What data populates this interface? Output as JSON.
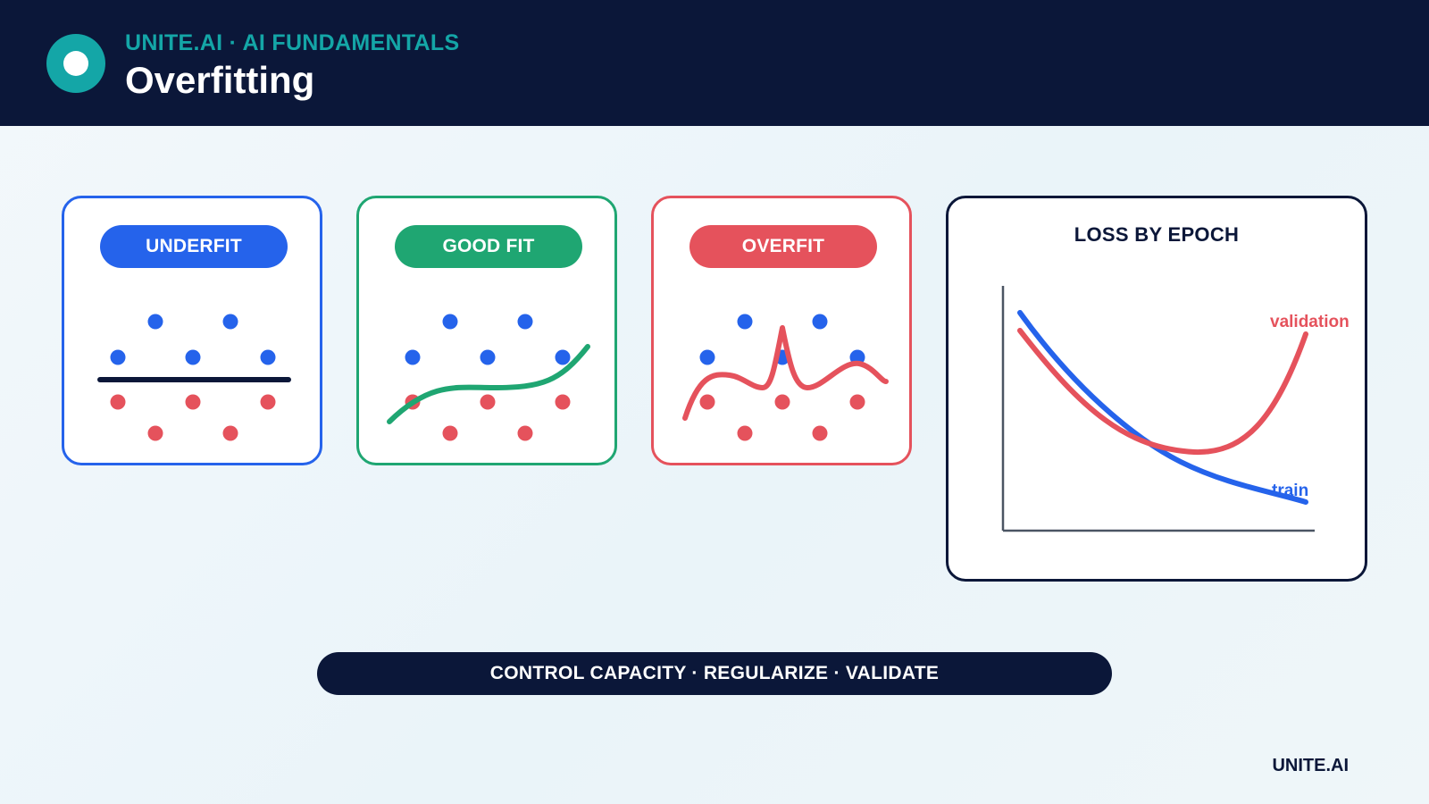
{
  "header": {
    "eyebrow": "UNITE.AI · AI FUNDAMENTALS",
    "title": "Overfitting"
  },
  "colors": {
    "navy": "#0b1739",
    "teal": "#14a6a7",
    "blue": "#2563eb",
    "green": "#1fa672",
    "red": "#e5525c",
    "axis": "#4b5563"
  },
  "panels": [
    {
      "label": "UNDERFIT",
      "accent": "#2563eb",
      "fit_line": "straight horizontal line"
    },
    {
      "label": "GOOD FIT",
      "accent": "#1fa672",
      "fit_line": "smooth curve"
    },
    {
      "label": "OVERFIT",
      "accent": "#e5525c",
      "fit_line": "wiggly curve through every point"
    }
  ],
  "loss_chart": {
    "title": "LOSS BY EPOCH",
    "series": [
      {
        "name": "train",
        "color": "#2563eb",
        "trend": "decreasing"
      },
      {
        "name": "validation",
        "color": "#e5525c",
        "trend": "decreases then increases"
      }
    ]
  },
  "banner": {
    "text": "CONTROL CAPACITY · REGULARIZE · VALIDATE"
  },
  "footer": {
    "brand": "UNITE.AI"
  }
}
